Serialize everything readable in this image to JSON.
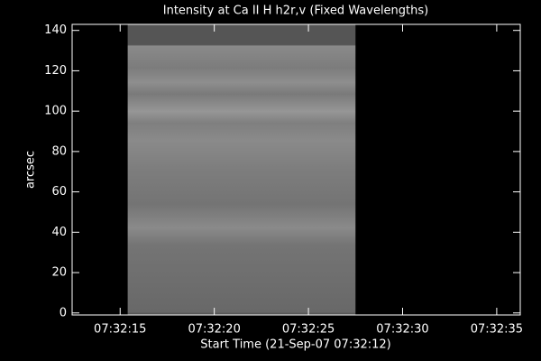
{
  "chart_data": {
    "type": "image",
    "title": "Intensity at Ca II H h2r,v (Fixed Wavelengths)",
    "x_label": "Start Time (21-Sep-07 07:32:12)",
    "y_label": "arcsec",
    "xlim": [
      12.45,
      36.25
    ],
    "ylim": [
      -1,
      143
    ],
    "xticks": [
      {
        "value": 15,
        "label": "07:32:15"
      },
      {
        "value": 20,
        "label": "07:32:20"
      },
      {
        "value": 25,
        "label": "07:32:25"
      },
      {
        "value": 30,
        "label": "07:32:30"
      },
      {
        "value": 35,
        "label": "07:32:35"
      }
    ],
    "yticks": [
      0,
      20,
      40,
      60,
      80,
      100,
      120,
      140
    ],
    "image_x": [
      15.4,
      27.5
    ]
  }
}
